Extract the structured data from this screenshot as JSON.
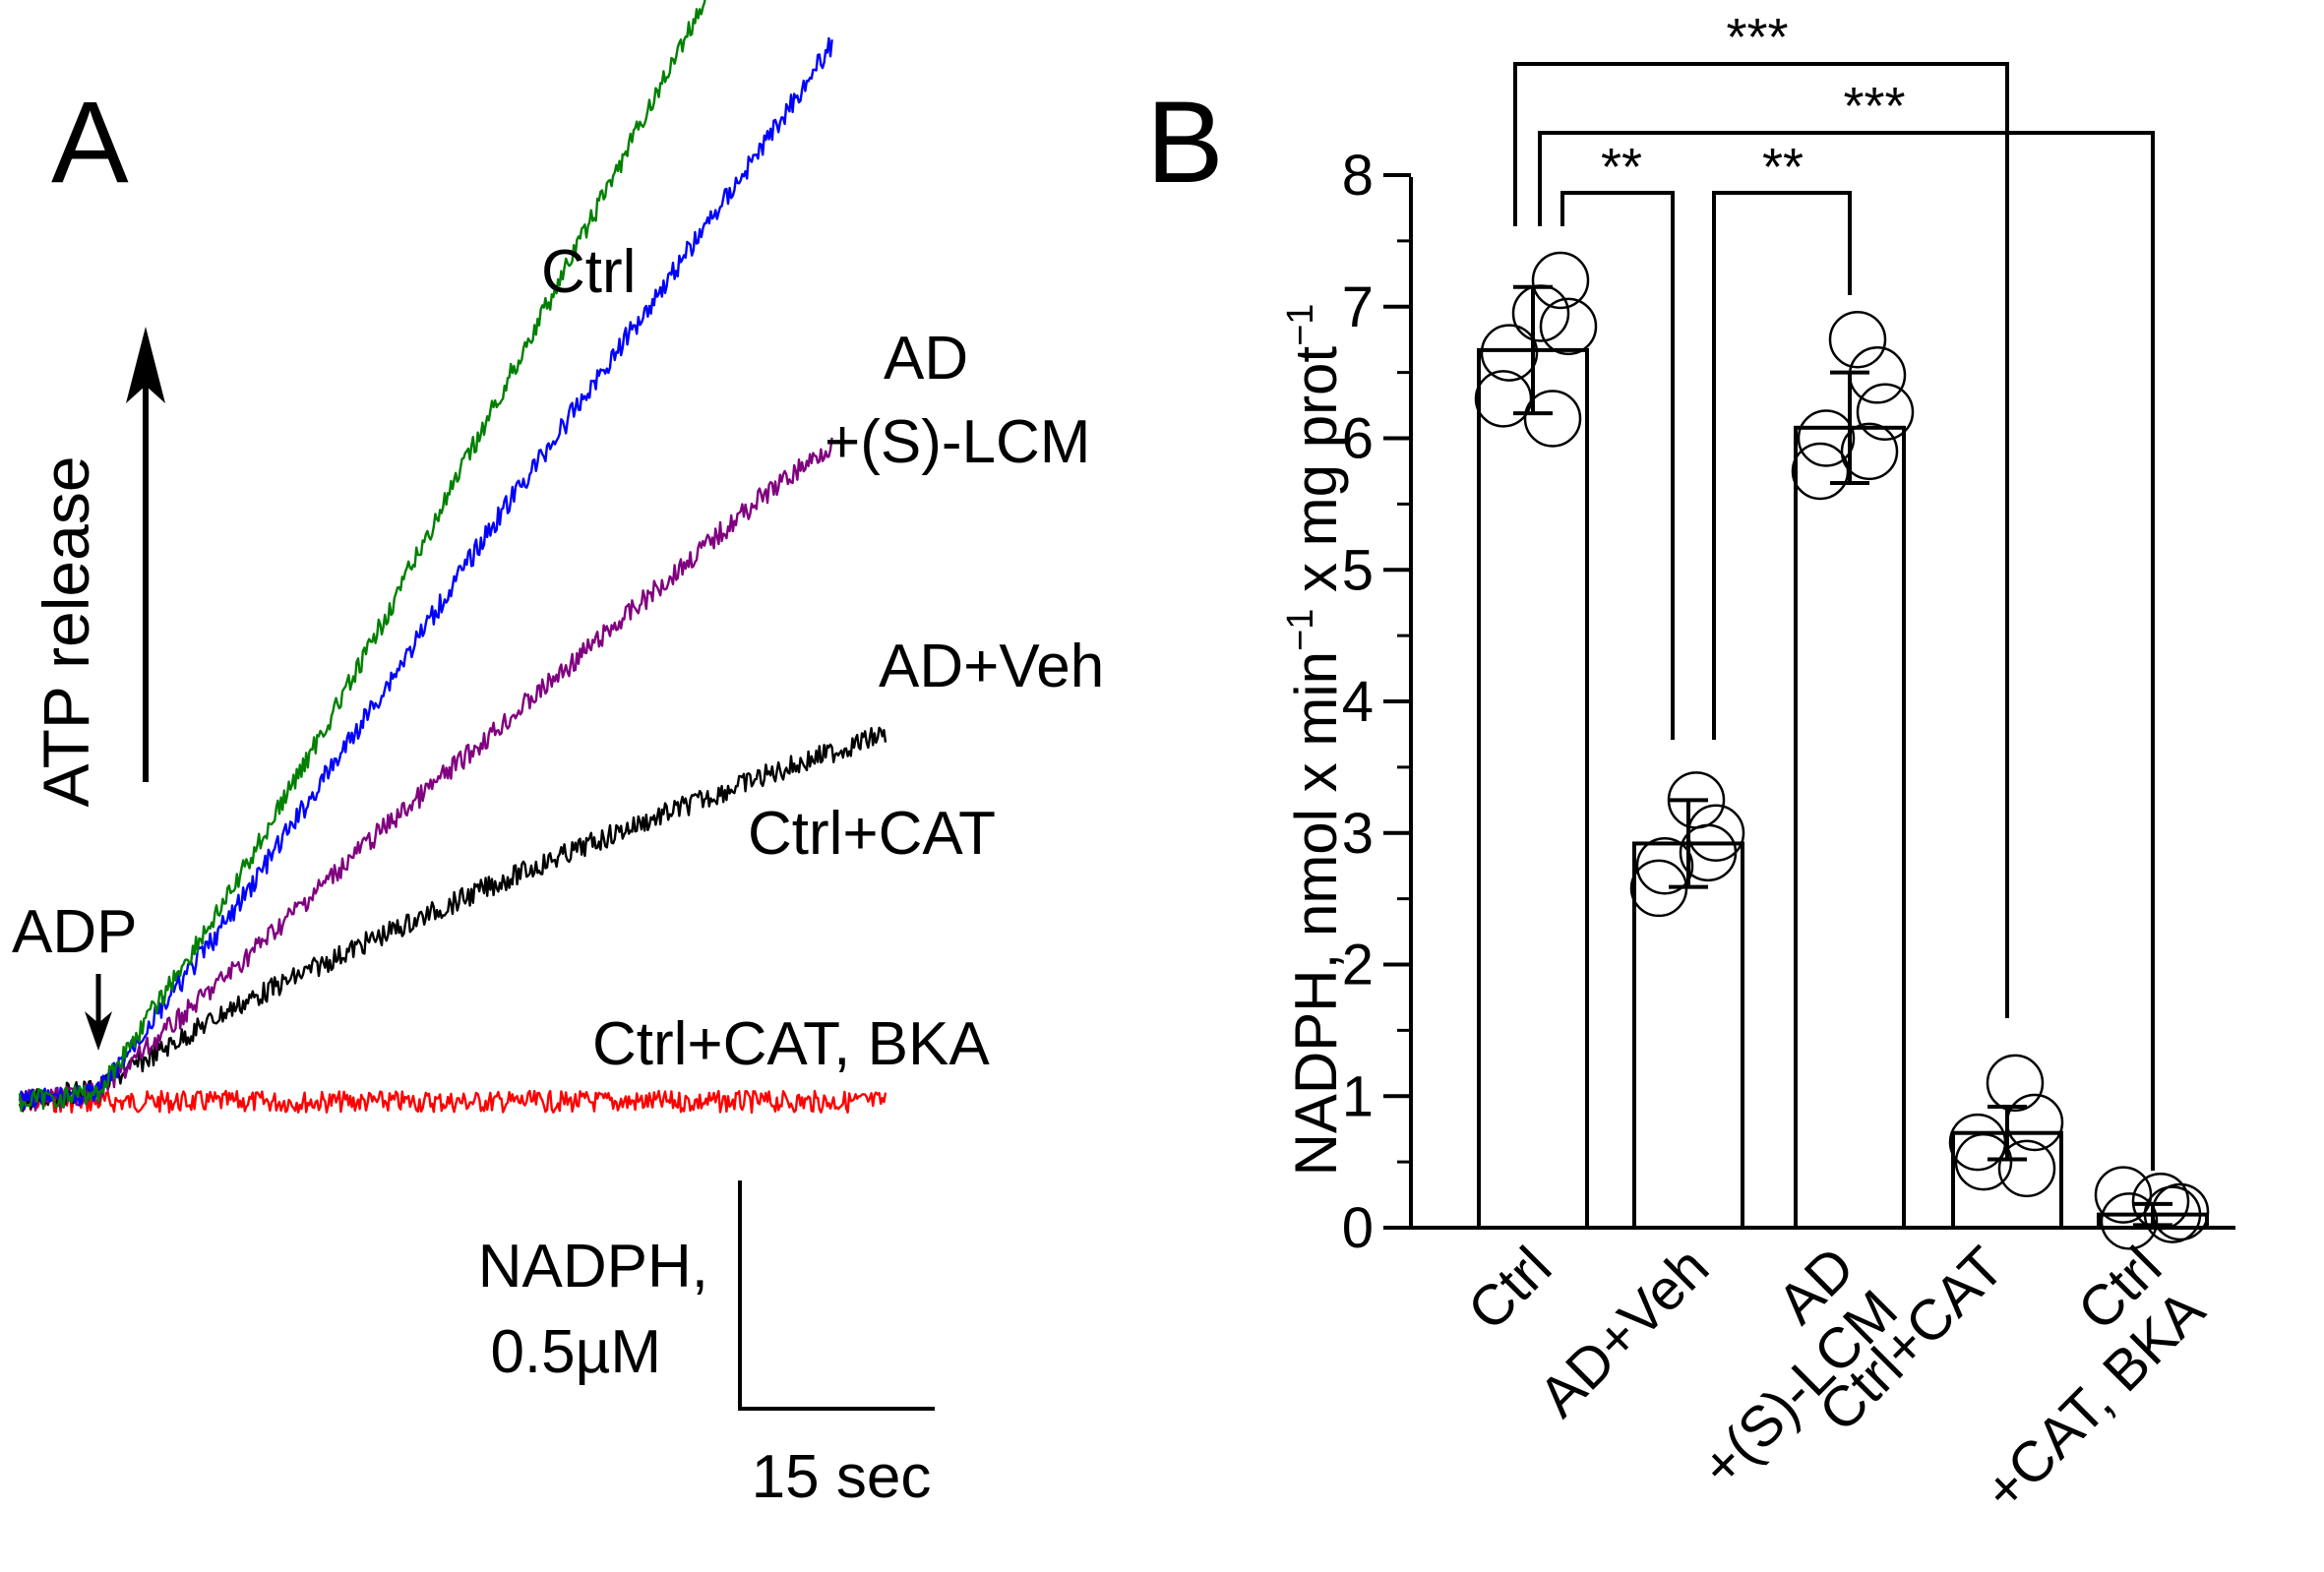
{
  "panel_a": {
    "letter": "A",
    "arrow_label": "ATP release",
    "adp_label": "ADP",
    "scale_y_label_1": "NADPH,",
    "scale_y_label_2": "0.5µM",
    "scale_x_label": "15 sec",
    "trace_labels": {
      "ctrl": "Ctrl",
      "ad_lcm_1": "AD",
      "ad_lcm_2": "+(S)-LCM",
      "ad_veh": "AD+Veh",
      "ctrl_cat": "Ctrl+CAT",
      "ctrl_cat_bka": "Ctrl+CAT, BKA"
    }
  },
  "panel_b": {
    "letter": "B",
    "ylabel_main": "NADPH, nmol x min",
    "ylabel_exp1": "−1",
    "ylabel_mid": " x mg prot",
    "ylabel_exp2": "−1",
    "sig": {
      "s1": "***",
      "s2": "***",
      "s3": "**",
      "s4": "**"
    },
    "xtick": {
      "c0": [
        "Ctrl"
      ],
      "c1": [
        "AD+Veh"
      ],
      "c2": [
        "AD",
        "+(S)-LCM"
      ],
      "c3": [
        "Ctrl+CAT"
      ],
      "c4": [
        "Ctrl",
        "+CAT, BKA"
      ]
    }
  },
  "chart_data": [
    {
      "type": "line",
      "panel": "A",
      "x_unit": "sec",
      "y_unit": "NADPH µM",
      "adp_added_at_sec": 0,
      "series": [
        {
          "name": "Ctrl",
          "color": "#008000",
          "x": [
            -6,
            0,
            10,
            20,
            30,
            40,
            50,
            56
          ],
          "y": [
            0,
            0.02,
            0.45,
            0.95,
            1.5,
            2.05,
            2.6,
            2.9
          ]
        },
        {
          "name": "AD +(S)-LCM",
          "color": "#0000ff",
          "x": [
            -6,
            0,
            10,
            20,
            30,
            40,
            50,
            56
          ],
          "y": [
            0,
            0.02,
            0.4,
            0.82,
            1.25,
            1.65,
            2.05,
            2.3
          ]
        },
        {
          "name": "AD+Veh",
          "color": "#800080",
          "x": [
            -6,
            0,
            10,
            20,
            30,
            40,
            50,
            56
          ],
          "y": [
            0,
            0.02,
            0.28,
            0.55,
            0.8,
            1.05,
            1.3,
            1.43
          ]
        },
        {
          "name": "Ctrl+CAT",
          "color": "#000000",
          "x": [
            -6,
            0,
            10,
            20,
            30,
            40,
            50,
            60
          ],
          "y": [
            0,
            0.03,
            0.2,
            0.34,
            0.47,
            0.59,
            0.7,
            0.8
          ]
        },
        {
          "name": "Ctrl+CAT, BKA",
          "color": "#ff0000",
          "x": [
            -6,
            0,
            10,
            20,
            30,
            40,
            50,
            60
          ],
          "y": [
            0,
            0,
            0,
            0,
            0,
            0,
            0,
            0
          ]
        }
      ],
      "scale_bars": {
        "y": "NADPH, 0.5µM",
        "x": "15 sec"
      }
    },
    {
      "type": "bar",
      "panel": "B",
      "categories": [
        "Ctrl",
        "AD+Veh",
        "AD +(S)-LCM",
        "Ctrl+CAT",
        "Ctrl +CAT, BKA"
      ],
      "values": [
        6.67,
        2.92,
        6.08,
        0.72,
        0.1
      ],
      "error": [
        0.48,
        0.33,
        0.42,
        0.2,
        0.08
      ],
      "points": [
        [
          6.65,
          7.2,
          6.95,
          6.3,
          6.15,
          6.85
        ],
        [
          2.75,
          3.0,
          3.25,
          2.58,
          2.85
        ],
        [
          6.0,
          6.48,
          6.75,
          5.75,
          5.9,
          6.2
        ],
        [
          0.5,
          0.8,
          1.1,
          0.65,
          0.45
        ],
        [
          0.05,
          0.12,
          0.2,
          0.25,
          0.1
        ]
      ],
      "ylabel": "NADPH, nmol x min⁻¹ x mg prot⁻¹",
      "ylim": [
        0,
        8
      ],
      "yticks": [
        0,
        1,
        2,
        3,
        4,
        5,
        6,
        7,
        8
      ],
      "significance": [
        {
          "pair": [
            "Ctrl",
            "Ctrl+CAT"
          ],
          "label": "***"
        },
        {
          "pair": [
            "Ctrl",
            "Ctrl +CAT, BKA"
          ],
          "label": "***"
        },
        {
          "pair": [
            "Ctrl",
            "AD+Veh"
          ],
          "label": "**"
        },
        {
          "pair": [
            "AD+Veh",
            "AD +(S)-LCM"
          ],
          "label": "**"
        }
      ]
    }
  ]
}
